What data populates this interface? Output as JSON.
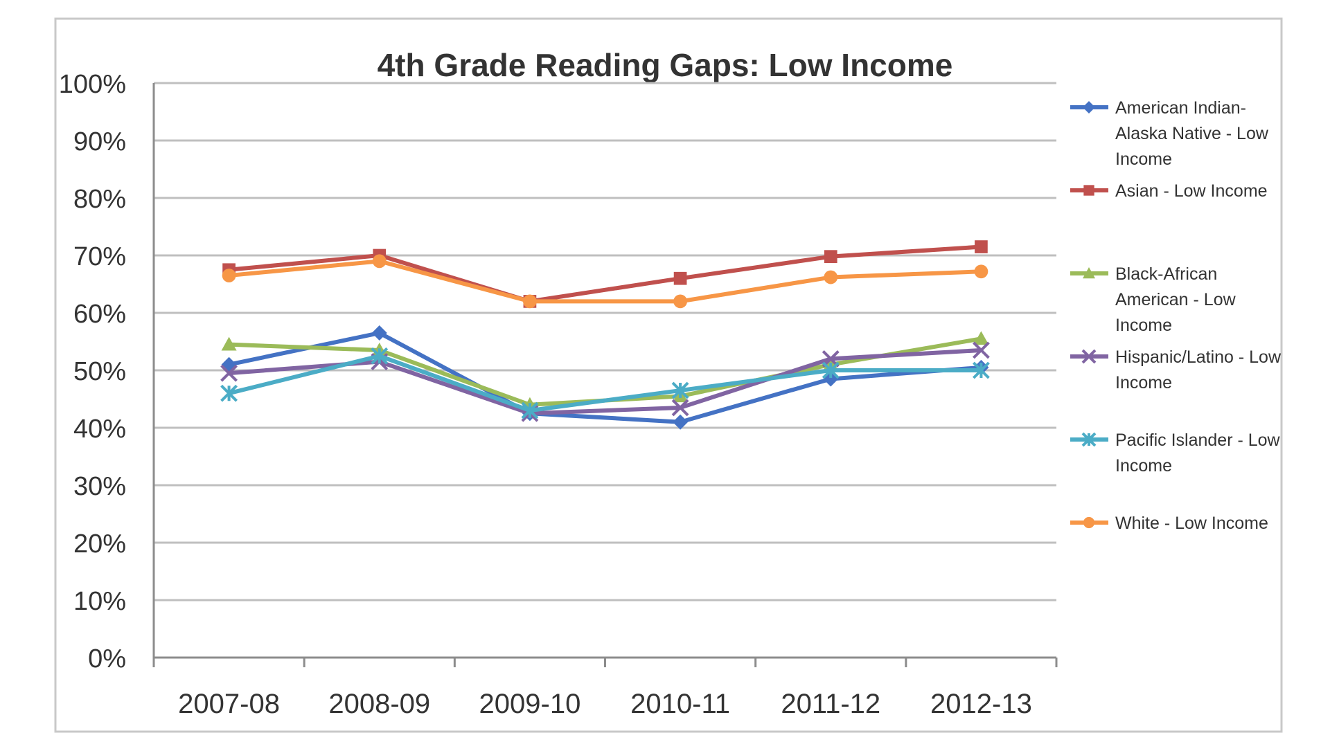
{
  "chart_data": {
    "type": "line",
    "title": "4th Grade Reading Gaps: Low Income",
    "xlabel": "",
    "ylabel": "",
    "categories": [
      "2007-08",
      "2008-09",
      "2009-10",
      "2010-11",
      "2011-12",
      "2012-13"
    ],
    "y_ticks": [
      "0%",
      "10%",
      "20%",
      "30%",
      "40%",
      "50%",
      "60%",
      "70%",
      "80%",
      "90%",
      "100%"
    ],
    "ylim": [
      0,
      100
    ],
    "y_unit": "%",
    "grid": "horizontal",
    "legend_position": "right",
    "series": [
      {
        "name": "American Indian-Alaska Native - Low Income",
        "legend_lines": [
          "American Indian-",
          "Alaska Native - Low",
          "Income"
        ],
        "color": "#4472C4",
        "marker": "diamond",
        "values": [
          51,
          56.5,
          42.5,
          41,
          48.5,
          50.5
        ]
      },
      {
        "name": "Asian - Low Income",
        "legend_lines": [
          "Asian - Low Income"
        ],
        "color": "#C0504D",
        "marker": "square",
        "values": [
          67.5,
          70,
          62,
          66,
          69.8,
          71.5
        ]
      },
      {
        "name": "Black-African American - Low Income",
        "legend_lines": [
          "Black-African",
          "American - Low",
          "Income"
        ],
        "color": "#9BBB59",
        "marker": "triangle",
        "values": [
          54.5,
          53.5,
          44,
          45.5,
          51,
          55.5
        ]
      },
      {
        "name": "Hispanic/Latino - Low Income",
        "legend_lines": [
          "Hispanic/Latino - Low",
          "Income"
        ],
        "color": "#8064A2",
        "marker": "x",
        "values": [
          49.5,
          51.5,
          42.5,
          43.5,
          52,
          53.5
        ]
      },
      {
        "name": "Pacific Islander - Low Income",
        "legend_lines": [
          "Pacific Islander - Low",
          "Income"
        ],
        "color": "#4BACC6",
        "marker": "star",
        "values": [
          46,
          52.5,
          43,
          46.5,
          50,
          50
        ]
      },
      {
        "name": "White - Low Income",
        "legend_lines": [
          "White - Low Income"
        ],
        "color": "#F79646",
        "marker": "circle",
        "values": [
          66.5,
          69,
          62,
          62,
          66.2,
          67.2
        ]
      }
    ]
  }
}
